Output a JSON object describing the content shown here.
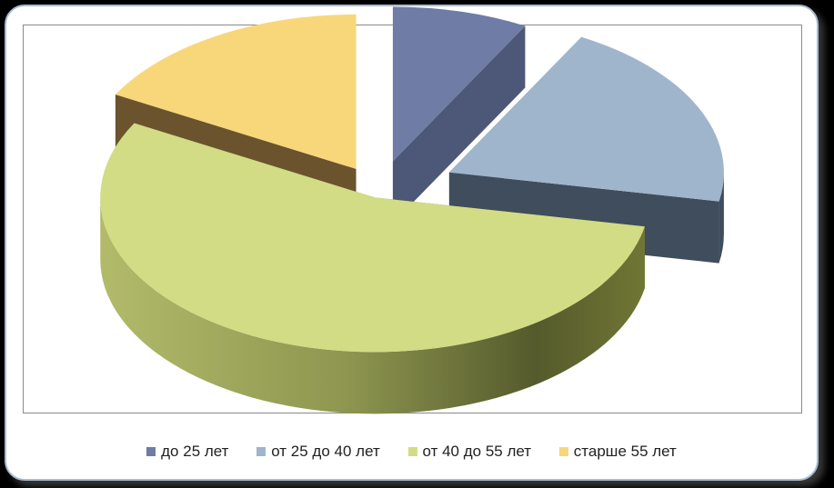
{
  "chart_data": {
    "type": "pie",
    "style": "3d-exploded",
    "categories": [
      "до 25 лет",
      "от 25 до 40 лет",
      "от 40 до 55 лет",
      "старше 55 лет"
    ],
    "values": [
      8,
      20,
      55,
      17
    ],
    "colors": [
      "#6e7ca6",
      "#9fb5cc",
      "#d1dc84",
      "#f7d77a"
    ],
    "legend_position": "bottom"
  }
}
